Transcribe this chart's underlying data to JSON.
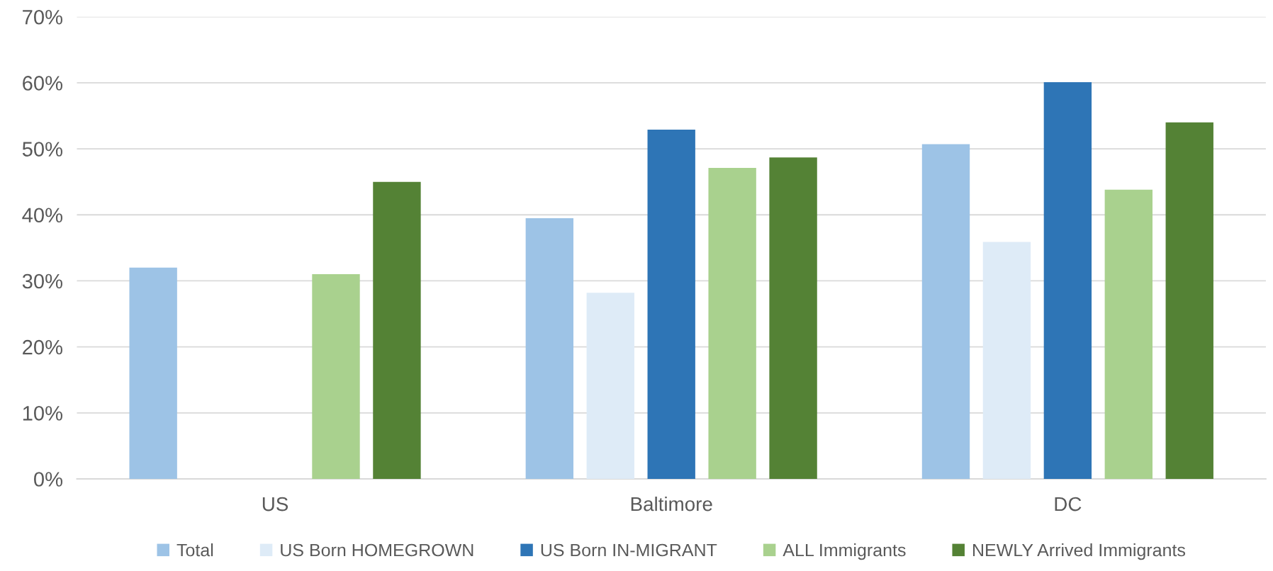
{
  "chart_data": {
    "type": "bar",
    "categories": [
      "US",
      "Baltimore",
      "DC"
    ],
    "series": [
      {
        "name": "Total",
        "color": "#9dc3e6",
        "values": [
          32,
          39.5,
          50.7
        ]
      },
      {
        "name": "US Born HOMEGROWN",
        "color": "#deebf7",
        "values": [
          null,
          28.2,
          35.9
        ]
      },
      {
        "name": "US Born IN-MIGRANT",
        "color": "#2e75b6",
        "values": [
          null,
          52.9,
          60.1
        ]
      },
      {
        "name": "ALL Immigrants",
        "color": "#a9d18e",
        "values": [
          31,
          47.1,
          43.8
        ]
      },
      {
        "name": "NEWLY Arrived Immigrants",
        "color": "#548235",
        "values": [
          45,
          48.7,
          54
        ]
      }
    ],
    "ylim": [
      0,
      70
    ],
    "yticks": [
      {
        "value": 0,
        "label": "0%"
      },
      {
        "value": 10,
        "label": "10%"
      },
      {
        "value": 20,
        "label": "20%"
      },
      {
        "value": 30,
        "label": "30%"
      },
      {
        "value": 40,
        "label": "40%"
      },
      {
        "value": 50,
        "label": "50%"
      },
      {
        "value": 60,
        "label": "60%"
      },
      {
        "value": 70,
        "label": "70%"
      }
    ],
    "grid": "y",
    "legend": "bottom"
  }
}
